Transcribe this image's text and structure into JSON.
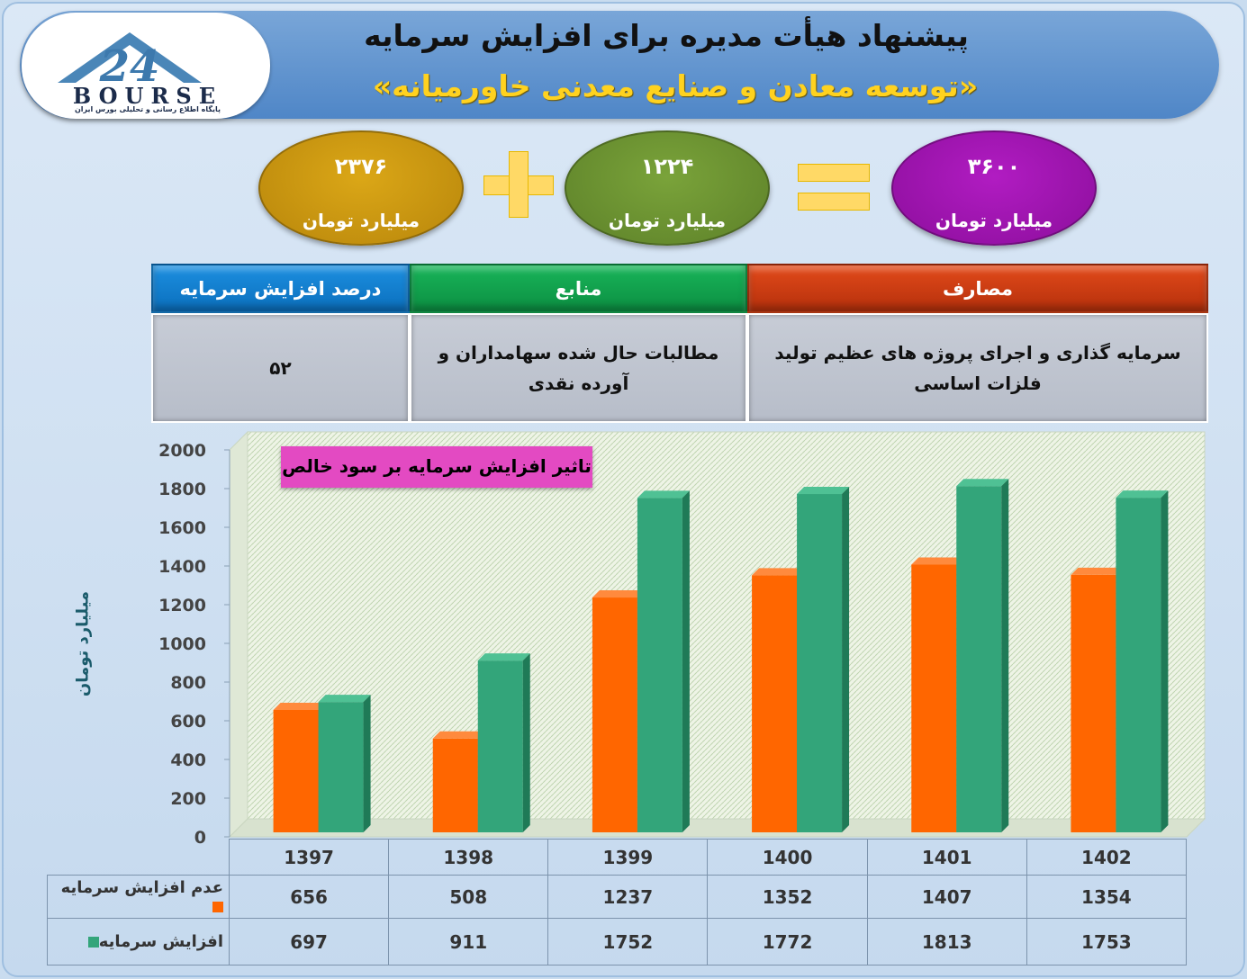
{
  "header": {
    "title": "پیشنهاد هیأت مدیره برای افزایش سرمایه",
    "company": "«توسعه معادن و صنایع معدنی خاورمیانه»",
    "logo_word": "BOURSE",
    "logo_sub": "پایگاه اطلاع رسانی و تحلیلی بورس ایران"
  },
  "equation": {
    "part_a": {
      "value": "۲۳۷۶",
      "unit": "میلیارد تومان"
    },
    "part_b": {
      "value": "۱۲۲۴",
      "unit": "میلیارد تومان"
    },
    "total": {
      "value": "۳۶۰۰",
      "unit": "میلیارد تومان"
    }
  },
  "info_table": {
    "percent_header": "درصد افزایش سرمایه",
    "percent_value": "۵۲",
    "sources_header": "منابع",
    "sources_value": "مطالبات حال شده سهامداران و آورده نقدی",
    "uses_header": "مصارف",
    "uses_value": "سرمایه گذاری و اجرای پروژه های عظیم تولید فلزات اساسی"
  },
  "colors": {
    "series_no_increase": "#ff6600",
    "series_increase": "#33a57a",
    "chart_title_bg": "#e34ac2"
  },
  "chart_data": {
    "type": "bar",
    "title": "تاثیر افزایش سرمایه بر سود خالص",
    "ylabel": "میلیارد تومان",
    "xlabel": "",
    "ylim": [
      0,
      2000
    ],
    "yticks": [
      0,
      200,
      400,
      600,
      800,
      1000,
      1200,
      1400,
      1600,
      1800,
      2000
    ],
    "categories": [
      "1397",
      "1398",
      "1399",
      "1400",
      "1401",
      "1402"
    ],
    "series": [
      {
        "name": "عدم افزایش سرمایه",
        "values": [
          656,
          508,
          1237,
          1352,
          1407,
          1354
        ]
      },
      {
        "name": "افزایش سرمایه",
        "values": [
          697,
          911,
          1752,
          1772,
          1813,
          1753
        ]
      }
    ],
    "grid": false,
    "legend": "data-table-left"
  }
}
